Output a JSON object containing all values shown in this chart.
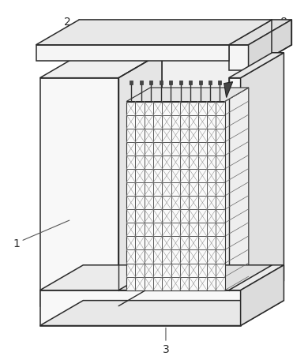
{
  "bg_color": "#ffffff",
  "line_color": "#2a2a2a",
  "figsize": [
    3.9,
    4.52
  ],
  "dpi": 100,
  "label_fs": 10,
  "label_color": "#2a2a2a",
  "leader_color": "#555555"
}
